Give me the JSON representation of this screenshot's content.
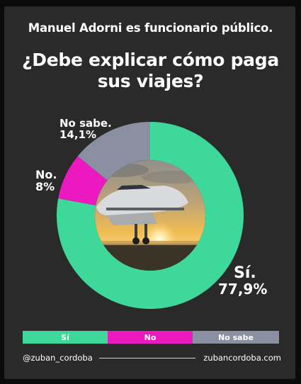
{
  "header": {
    "subtitle": "Manuel Adorni es funcionario público.",
    "title_line1": "¿Debe explicar cómo paga",
    "title_line2": "sus viajes?"
  },
  "chart_data": {
    "type": "pie",
    "donut": true,
    "title": "¿Debe explicar cómo paga sus viajes?",
    "subtitle": "Manuel Adorni es funcionario público.",
    "categories": [
      "Sí",
      "No",
      "No sabe"
    ],
    "values": [
      77.9,
      8,
      14.1
    ],
    "colors": [
      "#3ed89a",
      "#ec18c0",
      "#8b8fa2"
    ],
    "slice_labels": [
      {
        "name": "Sí.",
        "value": "77,9%"
      },
      {
        "name": "No.",
        "value": "8%"
      },
      {
        "name": "No sabe.",
        "value": "14,1%"
      }
    ],
    "legend": {
      "position": "bottom",
      "items": [
        "Sí",
        "No",
        "No sabe"
      ]
    },
    "center_image": "private-jet-on-runway-at-sunset"
  },
  "footer": {
    "handle": "@zuban_cordoba",
    "website": "zubancordoba.com"
  }
}
